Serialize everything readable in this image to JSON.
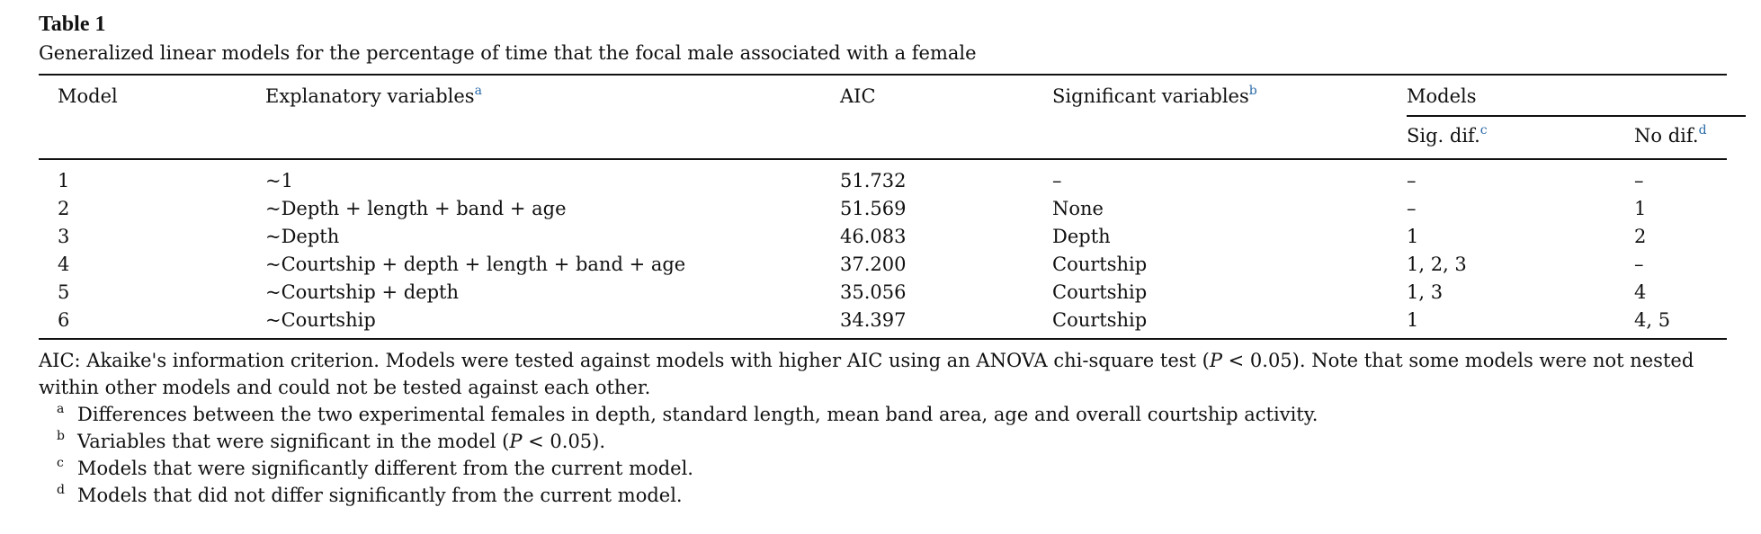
{
  "table": {
    "label": "Table 1",
    "caption": "Generalized linear models for the percentage of time that the focal male associated with a female",
    "headers": {
      "model": "Model",
      "explanatory": "Explanatory variables",
      "explanatory_note": "a",
      "aic": "AIC",
      "significant": "Significant variables",
      "significant_note": "b",
      "models_group": "Models",
      "sig_dif": "Sig. dif.",
      "sig_dif_note": "c",
      "no_dif": "No dif.",
      "no_dif_note": "d"
    },
    "rows": [
      {
        "model": "1",
        "explanatory": "~1",
        "aic": "51.732",
        "significant": "–",
        "sig_dif": "–",
        "no_dif": "–"
      },
      {
        "model": "2",
        "explanatory": "~Depth + length + band + age",
        "aic": "51.569",
        "significant": "None",
        "sig_dif": "–",
        "no_dif": "1"
      },
      {
        "model": "3",
        "explanatory": "~Depth",
        "aic": "46.083",
        "significant": "Depth",
        "sig_dif": "1",
        "no_dif": "2"
      },
      {
        "model": "4",
        "explanatory": "~Courtship + depth + length + band + age",
        "aic": "37.200",
        "significant": "Courtship",
        "sig_dif": "1, 2, 3",
        "no_dif": "–"
      },
      {
        "model": "5",
        "explanatory": "~Courtship + depth",
        "aic": "35.056",
        "significant": "Courtship",
        "sig_dif": "1, 3",
        "no_dif": "4"
      },
      {
        "model": "6",
        "explanatory": "~Courtship",
        "aic": "34.397",
        "significant": "Courtship",
        "sig_dif": "1",
        "no_dif": "4, 5"
      }
    ]
  },
  "notes": {
    "main_part1": "AIC: Akaike's information criterion. Models were tested against models with higher AIC using an ANOVA chi-square test (",
    "main_p": "P",
    "main_part2": " < 0.05). Note that some models were not nested within other models and could not be tested against each other.",
    "footnotes": [
      {
        "mark": "a",
        "text": "Differences between the two experimental females in depth, standard length, mean band area, age and overall courtship activity."
      },
      {
        "mark": "b",
        "text_part1": "Variables that were significant in the model (",
        "p": "P",
        "text_part2": " < 0.05)."
      },
      {
        "mark": "c",
        "text": "Models that were significantly different from the current model."
      },
      {
        "mark": "d",
        "text": "Models that did not differ significantly from the current model."
      }
    ]
  }
}
